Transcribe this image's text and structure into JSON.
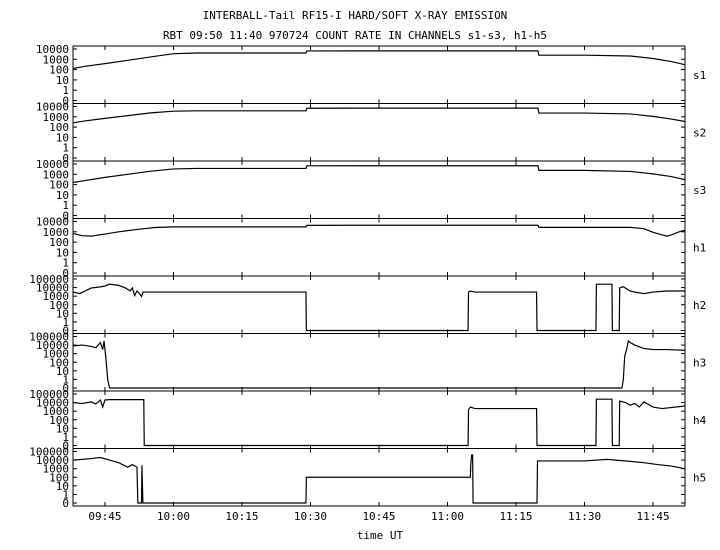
{
  "chart_data": {
    "type": "line",
    "title": "INTERBALL-Tail RF15-I HARD/SOFT X-RAY EMISSION",
    "subtitle": "RBT 09:50 11:40 970724  COUNT RATE IN CHANNELS s1-s3, h1-h5",
    "xlabel": "time UT",
    "x_ticks": [
      {
        "t": 585,
        "label": "09:45"
      },
      {
        "t": 600,
        "label": "10:00"
      },
      {
        "t": 615,
        "label": "10:15"
      },
      {
        "t": 630,
        "label": "10:30"
      },
      {
        "t": 645,
        "label": "10:45"
      },
      {
        "t": 660,
        "label": "11:00"
      },
      {
        "t": 675,
        "label": "11:15"
      },
      {
        "t": 690,
        "label": "11:30"
      },
      {
        "t": 705,
        "label": "11:45"
      }
    ],
    "x_range": [
      578,
      712
    ],
    "y_scale": "log",
    "panels": [
      {
        "name": "s1",
        "y_range": [
          0,
          10000
        ],
        "y_ticks": [
          {
            "v": 10000,
            "label": "10000"
          },
          {
            "v": 1000,
            "label": "1000"
          },
          {
            "v": 100,
            "label": "100"
          },
          {
            "v": 10,
            "label": "10"
          },
          {
            "v": 1,
            "label": "1"
          },
          {
            "v": 0,
            "label": "0"
          }
        ],
        "series": [
          [
            578,
            130
          ],
          [
            581,
            220
          ],
          [
            585,
            380
          ],
          [
            590,
            800
          ],
          [
            595,
            1700
          ],
          [
            600,
            3500
          ],
          [
            605,
            4100
          ],
          [
            615,
            4100
          ],
          [
            629,
            4100
          ],
          [
            629.2,
            6500
          ],
          [
            640,
            6600
          ],
          [
            660,
            6600
          ],
          [
            679.8,
            6600
          ],
          [
            680,
            2500
          ],
          [
            690,
            2500
          ],
          [
            700,
            2100
          ],
          [
            705,
            1200
          ],
          [
            709,
            600
          ],
          [
            712,
            300
          ]
        ]
      },
      {
        "name": "s2",
        "y_range": [
          0,
          10000
        ],
        "y_ticks": [
          {
            "v": 10000,
            "label": "10000"
          },
          {
            "v": 1000,
            "label": "1000"
          },
          {
            "v": 100,
            "label": "100"
          },
          {
            "v": 10,
            "label": "10"
          },
          {
            "v": 1,
            "label": "1"
          },
          {
            "v": 0,
            "label": "0"
          }
        ],
        "series": [
          [
            578,
            260
          ],
          [
            581,
            420
          ],
          [
            585,
            700
          ],
          [
            590,
            1300
          ],
          [
            595,
            2400
          ],
          [
            600,
            3500
          ],
          [
            605,
            3800
          ],
          [
            615,
            3800
          ],
          [
            629,
            3800
          ],
          [
            629.2,
            6800
          ],
          [
            640,
            6900
          ],
          [
            660,
            6900
          ],
          [
            679.8,
            6900
          ],
          [
            680,
            2300
          ],
          [
            690,
            2300
          ],
          [
            700,
            1900
          ],
          [
            705,
            1100
          ],
          [
            709,
            600
          ],
          [
            712,
            350
          ]
        ]
      },
      {
        "name": "s3",
        "y_range": [
          0,
          10000
        ],
        "y_ticks": [
          {
            "v": 10000,
            "label": "10000"
          },
          {
            "v": 1000,
            "label": "1000"
          },
          {
            "v": 100,
            "label": "100"
          },
          {
            "v": 10,
            "label": "10"
          },
          {
            "v": 1,
            "label": "1"
          },
          {
            "v": 0,
            "label": "0"
          }
        ],
        "series": [
          [
            578,
            160
          ],
          [
            581,
            260
          ],
          [
            585,
            500
          ],
          [
            590,
            1000
          ],
          [
            595,
            2000
          ],
          [
            600,
            3300
          ],
          [
            605,
            3700
          ],
          [
            615,
            3700
          ],
          [
            629,
            3700
          ],
          [
            629.2,
            6700
          ],
          [
            640,
            6800
          ],
          [
            660,
            6800
          ],
          [
            679.8,
            6800
          ],
          [
            680,
            2400
          ],
          [
            690,
            2400
          ],
          [
            700,
            1900
          ],
          [
            705,
            1100
          ],
          [
            709,
            600
          ],
          [
            712,
            300
          ]
        ]
      },
      {
        "name": "h1",
        "y_range": [
          0,
          10000
        ],
        "y_ticks": [
          {
            "v": 10000,
            "label": "10000"
          },
          {
            "v": 1000,
            "label": "1000"
          },
          {
            "v": 100,
            "label": "100"
          },
          {
            "v": 10,
            "label": "10"
          },
          {
            "v": 1,
            "label": "1"
          },
          {
            "v": 0,
            "label": "0"
          }
        ],
        "series": [
          [
            578,
            700
          ],
          [
            580,
            420
          ],
          [
            582,
            380
          ],
          [
            585,
            600
          ],
          [
            588,
            1000
          ],
          [
            592,
            1700
          ],
          [
            596,
            2600
          ],
          [
            600,
            3000
          ],
          [
            615,
            3000
          ],
          [
            629,
            3000
          ],
          [
            629.2,
            4200
          ],
          [
            640,
            4300
          ],
          [
            660,
            4300
          ],
          [
            679.8,
            4300
          ],
          [
            680,
            2700
          ],
          [
            690,
            2700
          ],
          [
            700,
            2700
          ],
          [
            703,
            2000
          ],
          [
            705,
            900
          ],
          [
            707,
            500
          ],
          [
            708,
            380
          ],
          [
            709,
            500
          ],
          [
            711,
            1100
          ],
          [
            712,
            1400
          ]
        ]
      },
      {
        "name": "h2",
        "y_range": [
          0,
          100000
        ],
        "y_ticks": [
          {
            "v": 100000,
            "label": "100000"
          },
          {
            "v": 10000,
            "label": "10000"
          },
          {
            "v": 1000,
            "label": "1000"
          },
          {
            "v": 100,
            "label": "100"
          },
          {
            "v": 10,
            "label": "10"
          },
          {
            "v": 1,
            "label": "1"
          },
          {
            "v": 0,
            "label": "0"
          }
        ],
        "series": [
          [
            578,
            3000
          ],
          [
            579.5,
            2000
          ],
          [
            581,
            5000
          ],
          [
            582,
            9000
          ],
          [
            584,
            12000
          ],
          [
            585,
            15000
          ],
          [
            586,
            25000
          ],
          [
            588,
            18000
          ],
          [
            589.5,
            9000
          ],
          [
            590.5,
            4000
          ],
          [
            591,
            9000
          ],
          [
            591.5,
            1200
          ],
          [
            592,
            4000
          ],
          [
            592.5,
            2200
          ],
          [
            593,
            900
          ],
          [
            593.3,
            3000
          ],
          [
            593.5,
            3000
          ],
          [
            610,
            3000
          ],
          [
            629,
            3000
          ],
          [
            629.1,
            0
          ],
          [
            664.5,
            0
          ],
          [
            664.6,
            3000
          ],
          [
            665,
            4000
          ],
          [
            666,
            3000
          ],
          [
            679.5,
            3000
          ],
          [
            679.6,
            0
          ],
          [
            692.5,
            0
          ],
          [
            692.6,
            25000
          ],
          [
            696,
            25000
          ],
          [
            696.1,
            0
          ],
          [
            697.6,
            0
          ],
          [
            697.7,
            9000
          ],
          [
            698.3,
            12000
          ],
          [
            698.5,
            12000
          ],
          [
            700,
            4000
          ],
          [
            701,
            3000
          ],
          [
            703,
            2000
          ],
          [
            705,
            3000
          ],
          [
            708,
            4000
          ],
          [
            712,
            4000
          ]
        ]
      },
      {
        "name": "h3",
        "y_range": [
          0,
          100000
        ],
        "y_ticks": [
          {
            "v": 100000,
            "label": "100000"
          },
          {
            "v": 10000,
            "label": "10000"
          },
          {
            "v": 1000,
            "label": "1000"
          },
          {
            "v": 100,
            "label": "100"
          },
          {
            "v": 10,
            "label": "10"
          },
          {
            "v": 1,
            "label": "1"
          },
          {
            "v": 0,
            "label": "0"
          }
        ],
        "series": [
          [
            578,
            8000
          ],
          [
            580,
            10000
          ],
          [
            582,
            7000
          ],
          [
            583,
            5000
          ],
          [
            584,
            20000
          ],
          [
            584.5,
            3000
          ],
          [
            584.8,
            30000
          ],
          [
            585.2,
            300
          ],
          [
            585.6,
            1
          ],
          [
            586,
            0
          ],
          [
            698.2,
            0
          ],
          [
            698.5,
            1
          ],
          [
            698.8,
            500
          ],
          [
            699.2,
            3000
          ],
          [
            699.6,
            30000
          ],
          [
            700,
            20000
          ],
          [
            701,
            10000
          ],
          [
            703,
            4000
          ],
          [
            705,
            3000
          ],
          [
            708,
            3000
          ],
          [
            712,
            2500
          ]
        ]
      },
      {
        "name": "h4",
        "y_range": [
          0,
          100000
        ],
        "y_ticks": [
          {
            "v": 100000,
            "label": "100000"
          },
          {
            "v": 10000,
            "label": "10000"
          },
          {
            "v": 1000,
            "label": "1000"
          },
          {
            "v": 100,
            "label": "100"
          },
          {
            "v": 10,
            "label": "10"
          },
          {
            "v": 1,
            "label": "1"
          },
          {
            "v": 0,
            "label": "0"
          }
        ],
        "series": [
          [
            578,
            10000
          ],
          [
            580,
            8000
          ],
          [
            582,
            12000
          ],
          [
            583,
            7000
          ],
          [
            584,
            20000
          ],
          [
            584.5,
            3000
          ],
          [
            585,
            20000
          ],
          [
            586,
            22000
          ],
          [
            593.5,
            22000
          ],
          [
            593.6,
            0
          ],
          [
            664.5,
            0
          ],
          [
            664.6,
            1500
          ],
          [
            665,
            3000
          ],
          [
            666,
            2000
          ],
          [
            679.5,
            2000
          ],
          [
            679.6,
            0
          ],
          [
            692.5,
            0
          ],
          [
            692.6,
            25000
          ],
          [
            696,
            25000
          ],
          [
            696.1,
            0
          ],
          [
            697.6,
            0
          ],
          [
            697.7,
            15000
          ],
          [
            699,
            10000
          ],
          [
            700,
            5000
          ],
          [
            701,
            8000
          ],
          [
            702,
            3000
          ],
          [
            703,
            12000
          ],
          [
            705,
            3000
          ],
          [
            707,
            2000
          ],
          [
            712,
            4000
          ]
        ]
      },
      {
        "name": "h5",
        "y_range": [
          0,
          100000
        ],
        "y_ticks": [
          {
            "v": 100000,
            "label": "100000"
          },
          {
            "v": 10000,
            "label": "10000"
          },
          {
            "v": 1000,
            "label": "1000"
          },
          {
            "v": 100,
            "label": "100"
          },
          {
            "v": 10,
            "label": "10"
          },
          {
            "v": 1,
            "label": "1"
          },
          {
            "v": 0,
            "label": "0"
          }
        ],
        "series": [
          [
            578,
            10000
          ],
          [
            580,
            12000
          ],
          [
            582,
            15000
          ],
          [
            584,
            20000
          ],
          [
            586,
            10000
          ],
          [
            588,
            5000
          ],
          [
            590,
            1500
          ],
          [
            591,
            3000
          ],
          [
            592,
            1500
          ],
          [
            592.2,
            0
          ],
          [
            593,
            0
          ],
          [
            593.1,
            2500
          ],
          [
            593.3,
            0
          ],
          [
            629,
            0
          ],
          [
            629.1,
            100
          ],
          [
            665,
            100
          ],
          [
            665.1,
            4000
          ],
          [
            665.3,
            40000
          ],
          [
            665.5,
            40000
          ],
          [
            665.6,
            0
          ],
          [
            679.6,
            0
          ],
          [
            679.7,
            8000
          ],
          [
            690,
            8000
          ],
          [
            695,
            12000
          ],
          [
            700,
            7000
          ],
          [
            703,
            5000
          ],
          [
            706,
            3000
          ],
          [
            709,
            2000
          ],
          [
            712,
            1000
          ]
        ]
      }
    ]
  }
}
